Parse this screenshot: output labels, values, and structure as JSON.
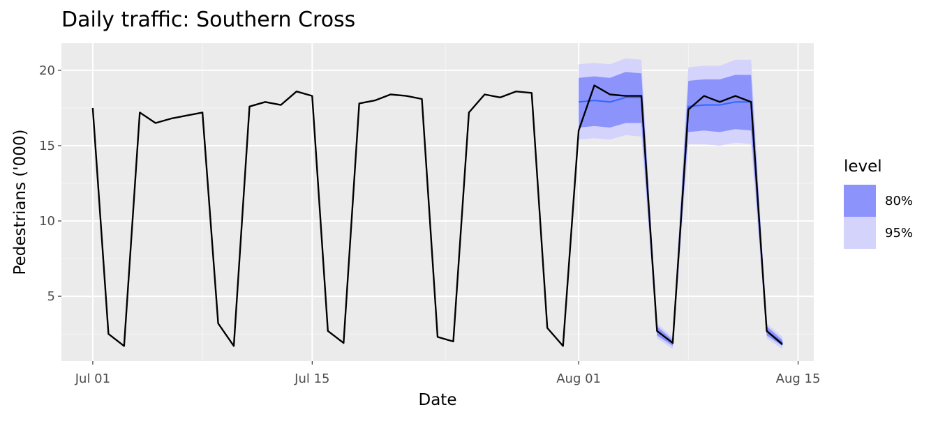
{
  "chart_data": {
    "type": "line",
    "title": "Daily traffic: Southern Cross",
    "xlabel": "Date",
    "ylabel": "Pedestrians ('000)",
    "xlim": [
      "2016-06-29",
      "2016-08-16"
    ],
    "ylim": [
      0.7,
      21.8
    ],
    "grid": true,
    "legend_position": "right",
    "x_ticks": [
      {
        "date": "2016-07-01",
        "label": "Jul 01"
      },
      {
        "date": "2016-07-15",
        "label": "Jul 15"
      },
      {
        "date": "2016-08-01",
        "label": "Aug 01"
      },
      {
        "date": "2016-08-15",
        "label": "Aug 15"
      }
    ],
    "y_ticks": [
      5,
      10,
      15,
      20
    ],
    "series": [
      {
        "type": "line",
        "color": "#000000",
        "points": [
          [
            "2016-07-01",
            17.5
          ],
          [
            "2016-07-02",
            2.5
          ],
          [
            "2016-07-03",
            1.7
          ],
          [
            "2016-07-04",
            17.2
          ],
          [
            "2016-07-05",
            16.5
          ],
          [
            "2016-07-06",
            16.8
          ],
          [
            "2016-07-07",
            17.0
          ],
          [
            "2016-07-08",
            17.2
          ],
          [
            "2016-07-09",
            3.2
          ],
          [
            "2016-07-10",
            1.7
          ],
          [
            "2016-07-11",
            17.6
          ],
          [
            "2016-07-12",
            17.9
          ],
          [
            "2016-07-13",
            17.7
          ],
          [
            "2016-07-14",
            18.6
          ],
          [
            "2016-07-15",
            18.3
          ],
          [
            "2016-07-16",
            2.7
          ],
          [
            "2016-07-17",
            1.9
          ],
          [
            "2016-07-18",
            17.8
          ],
          [
            "2016-07-19",
            18.0
          ],
          [
            "2016-07-20",
            18.4
          ],
          [
            "2016-07-21",
            18.3
          ],
          [
            "2016-07-22",
            18.1
          ],
          [
            "2016-07-23",
            2.3
          ],
          [
            "2016-07-24",
            2.0
          ],
          [
            "2016-07-25",
            17.2
          ],
          [
            "2016-07-26",
            18.4
          ],
          [
            "2016-07-27",
            18.2
          ],
          [
            "2016-07-28",
            18.6
          ],
          [
            "2016-07-29",
            18.5
          ],
          [
            "2016-07-30",
            2.9
          ],
          [
            "2016-07-31",
            1.7
          ],
          [
            "2016-08-01",
            16.0
          ],
          [
            "2016-08-02",
            19.0
          ],
          [
            "2016-08-03",
            18.4
          ],
          [
            "2016-08-04",
            18.3
          ],
          [
            "2016-08-05",
            18.3
          ],
          [
            "2016-08-06",
            2.7
          ],
          [
            "2016-08-07",
            1.9
          ],
          [
            "2016-08-08",
            17.4
          ],
          [
            "2016-08-09",
            18.3
          ],
          [
            "2016-08-10",
            17.9
          ],
          [
            "2016-08-11",
            18.3
          ],
          [
            "2016-08-12",
            17.9
          ],
          [
            "2016-08-13",
            2.7
          ],
          [
            "2016-08-14",
            1.8
          ]
        ]
      }
    ],
    "forecast": {
      "mean_color": "#3366ff",
      "points": [
        {
          "date": "2016-08-01",
          "mean": 17.9,
          "lo80": 16.2,
          "hi80": 19.5,
          "lo95": 15.4,
          "hi95": 20.4
        },
        {
          "date": "2016-08-02",
          "mean": 18.0,
          "lo80": 16.3,
          "hi80": 19.6,
          "lo95": 15.5,
          "hi95": 20.5
        },
        {
          "date": "2016-08-03",
          "mean": 17.9,
          "lo80": 16.2,
          "hi80": 19.5,
          "lo95": 15.4,
          "hi95": 20.4
        },
        {
          "date": "2016-08-04",
          "mean": 18.2,
          "lo80": 16.5,
          "hi80": 19.9,
          "lo95": 15.7,
          "hi95": 20.8
        },
        {
          "date": "2016-08-05",
          "mean": 18.2,
          "lo80": 16.5,
          "hi80": 19.8,
          "lo95": 15.6,
          "hi95": 20.7
        },
        {
          "date": "2016-08-06",
          "mean": 2.7,
          "lo80": 2.4,
          "hi80": 3.0,
          "lo95": 2.2,
          "hi95": 3.2
        },
        {
          "date": "2016-08-07",
          "mean": 1.9,
          "lo80": 1.7,
          "hi80": 2.1,
          "lo95": 1.5,
          "hi95": 2.3
        },
        {
          "date": "2016-08-08",
          "mean": 17.6,
          "lo80": 15.9,
          "hi80": 19.3,
          "lo95": 15.1,
          "hi95": 20.2
        },
        {
          "date": "2016-08-09",
          "mean": 17.7,
          "lo80": 16.0,
          "hi80": 19.4,
          "lo95": 15.1,
          "hi95": 20.3
        },
        {
          "date": "2016-08-10",
          "mean": 17.7,
          "lo80": 15.9,
          "hi80": 19.4,
          "lo95": 15.0,
          "hi95": 20.3
        },
        {
          "date": "2016-08-11",
          "mean": 17.9,
          "lo80": 16.1,
          "hi80": 19.7,
          "lo95": 15.2,
          "hi95": 20.7
        },
        {
          "date": "2016-08-12",
          "mean": 17.9,
          "lo80": 16.0,
          "hi80": 19.7,
          "lo95": 15.1,
          "hi95": 20.7
        },
        {
          "date": "2016-08-13",
          "mean": 2.7,
          "lo80": 2.4,
          "hi80": 3.0,
          "lo95": 2.2,
          "hi95": 3.2
        },
        {
          "date": "2016-08-14",
          "mean": 1.9,
          "lo80": 1.7,
          "hi80": 2.1,
          "lo95": 1.5,
          "hi95": 2.3
        }
      ]
    },
    "legend": {
      "title": "level",
      "items": [
        {
          "label": "80%",
          "color": "#8c94fc"
        },
        {
          "label": "95%",
          "color": "#d4d3fb"
        }
      ]
    },
    "colors": {
      "panel_background": "#ebebeb",
      "grid_major": "#ffffff",
      "grid_minor": "#f5f5f5",
      "tick_label": "#4d4d4d"
    }
  }
}
